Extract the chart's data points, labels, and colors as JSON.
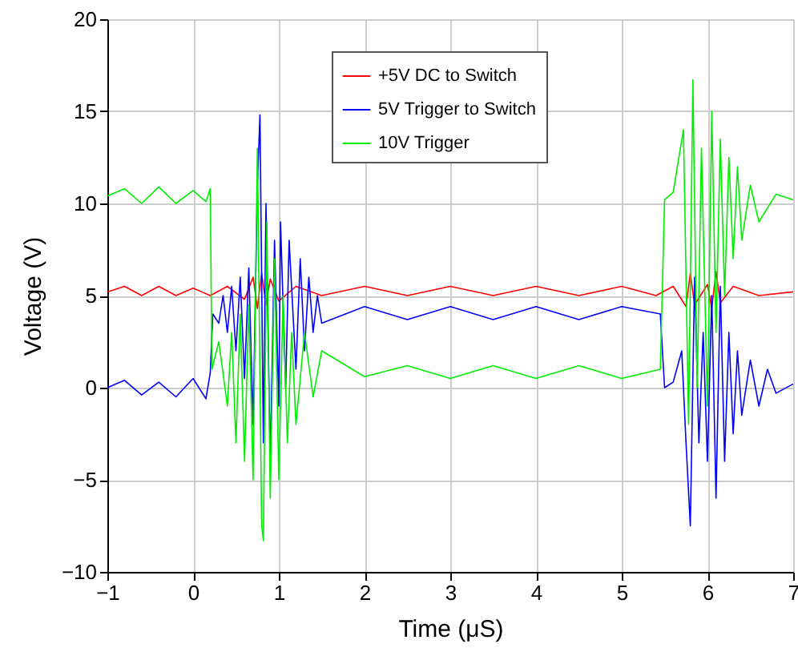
{
  "chart_data": {
    "type": "line",
    "xlabel": "Time (μS)",
    "ylabel": "Voltage (V)",
    "xlim": [
      -1,
      7
    ],
    "ylim": [
      -10,
      20
    ],
    "xticks": [
      -1,
      0,
      1,
      2,
      3,
      4,
      5,
      6,
      7
    ],
    "yticks": [
      -10,
      -5,
      0,
      5,
      10,
      15,
      20
    ],
    "grid": true,
    "legend": "top right",
    "line_style": "solid",
    "series": [
      {
        "name": "+5V DC to Switch",
        "color": "#ff0000",
        "x": [
          -1,
          -0.8,
          -0.6,
          -0.4,
          -0.2,
          0,
          0.2,
          0.4,
          0.6,
          0.7,
          0.75,
          0.8,
          0.85,
          0.9,
          1.0,
          1.2,
          1.5,
          2,
          2.5,
          3,
          3.5,
          4,
          4.5,
          5,
          5.4,
          5.6,
          5.75,
          5.8,
          5.85,
          6.0,
          6.05,
          6.1,
          6.15,
          6.3,
          6.6,
          7
        ],
        "values": [
          5.2,
          5.5,
          5.0,
          5.5,
          5.0,
          5.4,
          5.0,
          5.5,
          4.8,
          6.0,
          4.3,
          6.2,
          4.5,
          5.9,
          4.7,
          5.5,
          5.0,
          5.5,
          5.0,
          5.5,
          5.0,
          5.5,
          5.0,
          5.5,
          5.0,
          5.5,
          4.4,
          6.2,
          4.5,
          5.6,
          4.3,
          6.3,
          4.6,
          5.5,
          5.0,
          5.2
        ]
      },
      {
        "name": "5V Trigger to Switch",
        "color": "#0000ff",
        "x": [
          -1,
          -0.8,
          -0.6,
          -0.4,
          -0.2,
          0,
          0.15,
          0.2,
          0.23,
          0.3,
          0.35,
          0.4,
          0.45,
          0.5,
          0.55,
          0.6,
          0.65,
          0.7,
          0.75,
          0.78,
          0.82,
          0.85,
          0.9,
          0.95,
          1.0,
          1.02,
          1.08,
          1.12,
          1.2,
          1.25,
          1.3,
          1.35,
          1.4,
          1.45,
          1.5,
          2,
          2.5,
          3,
          3.5,
          4,
          4.5,
          5,
          5.45,
          5.5,
          5.6,
          5.7,
          5.75,
          5.8,
          5.85,
          5.9,
          5.95,
          6.0,
          6.05,
          6.1,
          6.15,
          6.2,
          6.25,
          6.3,
          6.35,
          6.4,
          6.5,
          6.6,
          6.7,
          6.8,
          7
        ],
        "values": [
          0,
          0.4,
          -0.4,
          0.3,
          -0.5,
          0.5,
          -0.6,
          0.8,
          4,
          3.5,
          5,
          3,
          5.5,
          2,
          6,
          0.5,
          6.5,
          -2,
          11,
          14.8,
          -3,
          10,
          -4,
          8,
          -1,
          9,
          0,
          8,
          1,
          7,
          2,
          6,
          3,
          5,
          3.5,
          4.4,
          3.7,
          4.4,
          3.7,
          4.4,
          3.7,
          4.4,
          4,
          0,
          0.3,
          2,
          -3,
          -7.5,
          6,
          -3,
          3,
          -4,
          5,
          -6,
          5.5,
          -4,
          3,
          -2.5,
          2,
          -1.5,
          1.5,
          -1,
          1,
          -0.3,
          0.2
        ]
      },
      {
        "name": "10V Trigger",
        "color": "#00ee00",
        "x": [
          -1,
          -0.8,
          -0.6,
          -0.4,
          -0.2,
          0,
          0.15,
          0.2,
          0.22,
          0.3,
          0.4,
          0.45,
          0.5,
          0.55,
          0.6,
          0.65,
          0.7,
          0.75,
          0.8,
          0.82,
          0.86,
          0.9,
          0.95,
          1.0,
          1.05,
          1.1,
          1.15,
          1.2,
          1.3,
          1.4,
          1.5,
          2,
          2.5,
          3,
          3.5,
          4,
          4.5,
          5,
          5.45,
          5.5,
          5.6,
          5.72,
          5.78,
          5.83,
          5.88,
          5.93,
          6.0,
          6.05,
          6.1,
          6.15,
          6.2,
          6.25,
          6.3,
          6.35,
          6.4,
          6.5,
          6.6,
          6.8,
          7
        ],
        "values": [
          10.4,
          10.8,
          10.0,
          10.9,
          10.0,
          10.7,
          10.1,
          10.8,
          1,
          2.5,
          -1,
          3,
          -3,
          4,
          -4,
          4.5,
          -5,
          13,
          -7.5,
          -8.3,
          9,
          -6,
          7,
          -5,
          5,
          -3,
          3,
          -2,
          3,
          -0.5,
          2,
          0.6,
          1.2,
          0.5,
          1.2,
          0.5,
          1.2,
          0.5,
          1,
          10.2,
          10.6,
          14,
          -2,
          16.7,
          0,
          13,
          -1,
          15,
          3,
          13.5,
          5,
          12.5,
          7,
          12,
          8,
          11,
          9,
          10.5,
          10.2
        ]
      }
    ]
  }
}
